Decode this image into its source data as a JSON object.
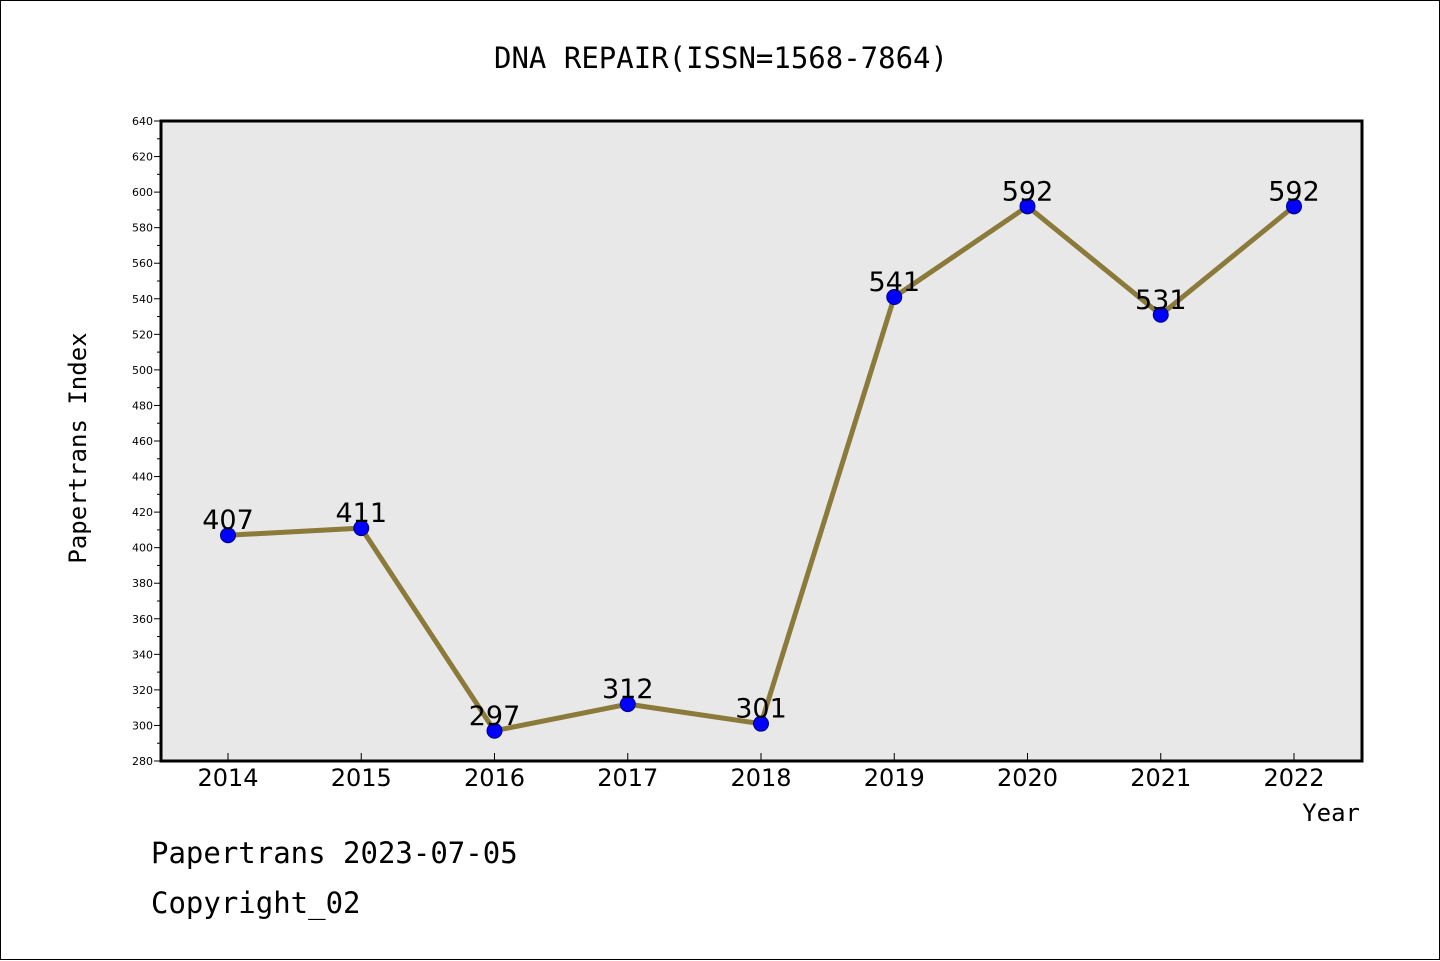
{
  "chart_data": {
    "type": "line",
    "title": "DNA REPAIR(ISSN=1568-7864)",
    "xlabel": "Year",
    "ylabel": "Papertrans Index",
    "categories": [
      "2014",
      "2015",
      "2016",
      "2017",
      "2018",
      "2019",
      "2020",
      "2021",
      "2022"
    ],
    "series": [
      {
        "values": [
          407,
          411,
          297,
          312,
          301,
          541,
          592,
          531,
          592
        ]
      }
    ],
    "ylim": [
      280,
      640
    ],
    "yticks": [
      280,
      300,
      320,
      340,
      360,
      380,
      400,
      420,
      440,
      460,
      480,
      500,
      520,
      540,
      560,
      580,
      600,
      620,
      640
    ],
    "grid": false,
    "legend": "none",
    "data_labels": true,
    "colors": {
      "line": "#8b7a3a",
      "marker_fill": "#0000ff",
      "marker_edge": "#000080",
      "plot_background": "#e8e8e8",
      "axes_border": "#000000"
    }
  },
  "footer": {
    "line1": "Papertrans 2023-07-05",
    "line2": "Copyright_02"
  }
}
